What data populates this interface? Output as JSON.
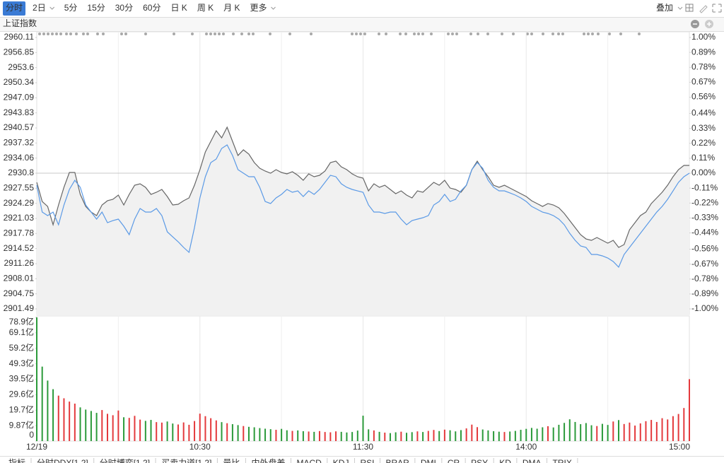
{
  "toolbar": {
    "tabs": [
      "分时",
      "2日",
      "5分",
      "15分",
      "30分",
      "60分",
      "日 K",
      "周 K",
      "月 K",
      "更多"
    ],
    "active": 0,
    "overlay": "叠加"
  },
  "chart_data": [
    {
      "type": "line",
      "title": "上证指数",
      "xlim": [
        0,
        120
      ],
      "xticks": [
        {
          "value": 0,
          "label": "12/19"
        },
        {
          "value": 30,
          "label": "10:30"
        },
        {
          "value": 60,
          "label": "11:30"
        },
        {
          "value": 90,
          "label": "14:00"
        },
        {
          "value": 120,
          "label": "15:00"
        }
      ],
      "ylim": [
        2901.49,
        2960.11
      ],
      "yticks": [
        2960.11,
        2956.85,
        2953.6,
        2950.34,
        2947.09,
        2943.83,
        2940.57,
        2937.32,
        2934.06,
        2930.8,
        2927.55,
        2924.29,
        2921.03,
        2917.78,
        2914.52,
        2911.26,
        2908.01,
        2904.75,
        2901.49
      ],
      "y2lim": [
        -1,
        1
      ],
      "y2ticks": [
        {
          "value": 1,
          "label": "1.00%"
        },
        {
          "value": 0.89,
          "label": "0.89%"
        },
        {
          "value": 0.78,
          "label": "0.78%"
        },
        {
          "value": 0.67,
          "label": "0.67%"
        },
        {
          "value": 0.56,
          "label": "0.56%"
        },
        {
          "value": 0.44,
          "label": "0.44%"
        },
        {
          "value": 0.33,
          "label": "0.33%"
        },
        {
          "value": 0.22,
          "label": "0.22%"
        },
        {
          "value": 0.11,
          "label": "0.11%"
        },
        {
          "value": 0,
          "label": "0.00%"
        },
        {
          "value": -0.11,
          "label": "-0.11%"
        },
        {
          "value": -0.22,
          "label": "-0.22%"
        },
        {
          "value": -0.33,
          "label": "-0.33%"
        },
        {
          "value": -0.44,
          "label": "-0.44%"
        },
        {
          "value": -0.56,
          "label": "-0.56%"
        },
        {
          "value": -0.67,
          "label": "-0.67%"
        },
        {
          "value": -0.78,
          "label": "-0.78%"
        },
        {
          "value": -0.89,
          "label": "-0.89%"
        },
        {
          "value": -1,
          "label": "-1.00%"
        }
      ],
      "up_color": "#e4393c",
      "down_color": "#2b9a3a",
      "flat_color": "#333333",
      "fill": "#f1f1f1",
      "series": [
        {
          "color": "#666666",
          "values": [
            2928.82,
            2924.69,
            2923.62,
            2919.66,
            2923.93,
            2927.75,
            2930.95,
            2930.95,
            2926.22,
            2923.62,
            2922.4,
            2921.64,
            2923.93,
            2924.85,
            2925.15,
            2926.07,
            2923.93,
            2926.22,
            2928.2,
            2928.51,
            2927.75,
            2926.22,
            2926.68,
            2927.29,
            2925.76,
            2923.93,
            2924.08,
            2924.85,
            2925.46,
            2928.2,
            2931.56,
            2935.38,
            2937.67,
            2939.96,
            2938.43,
            2940.72,
            2937.67,
            2934.62,
            2935.84,
            2934.92,
            2933.09,
            2931.87,
            2931.26,
            2930.8,
            2931.56,
            2930.95,
            2930.65,
            2931.11,
            2930.34,
            2929.27,
            2930.65,
            2930.04,
            2930.34,
            2931.26,
            2933.09,
            2933.4,
            2932.17,
            2931.56,
            2930.65,
            2930.04,
            2929.73,
            2926.98,
            2928.51,
            2927.75,
            2928.2,
            2927.29,
            2926.37,
            2926.98,
            2926.07,
            2925.46,
            2926.98,
            2926.68,
            2927.75,
            2928.82,
            2928.2,
            2929.27,
            2927.59,
            2927.29,
            2926.68,
            2928.2,
            2931.56,
            2933.4,
            2931.56,
            2930.04,
            2928.2,
            2927.75,
            2928.2,
            2927.59,
            2926.98,
            2926.37,
            2925.76,
            2924.85,
            2924.24,
            2923.62,
            2924.24,
            2923.93,
            2923.32,
            2922.1,
            2920.57,
            2919.05,
            2917.52,
            2916.6,
            2916.3,
            2916.91,
            2916.3,
            2915.69,
            2916.3,
            2914.77,
            2915.38,
            2918.59,
            2920.11,
            2921.64,
            2922.4,
            2924.24,
            2925.46,
            2926.68,
            2928.2,
            2930.04,
            2931.56,
            2932.48,
            2932.48
          ]
        },
        {
          "color": "#5b9ae6",
          "values": [
            2928.2,
            2922.4,
            2921.64,
            2922.4,
            2919.66,
            2923.93,
            2927.29,
            2929.27,
            2927.75,
            2923.93,
            2922.4,
            2920.88,
            2922.4,
            2920.11,
            2920.57,
            2920.88,
            2919.35,
            2917.52,
            2920.88,
            2923.17,
            2922.4,
            2922.4,
            2923.17,
            2921.64,
            2918.13,
            2917.06,
            2915.99,
            2914.77,
            2913.7,
            2919.05,
            2925.46,
            2930.04,
            2933.09,
            2933.85,
            2936.14,
            2936.91,
            2934.62,
            2931.56,
            2930.8,
            2930.04,
            2930.04,
            2927.75,
            2924.69,
            2924.24,
            2925.46,
            2926.22,
            2927.29,
            2926.68,
            2926.98,
            2925.76,
            2926.98,
            2926.22,
            2927.29,
            2928.82,
            2930.34,
            2930.04,
            2928.51,
            2927.75,
            2927.29,
            2926.98,
            2926.68,
            2923.93,
            2922.4,
            2922.4,
            2922.1,
            2922.4,
            2922.4,
            2920.88,
            2919.66,
            2920.57,
            2920.88,
            2921.18,
            2921.64,
            2923.93,
            2924.69,
            2926.22,
            2924.69,
            2925.15,
            2926.98,
            2928.2,
            2931.56,
            2933.09,
            2931.87,
            2929.27,
            2927.75,
            2926.98,
            2926.98,
            2926.53,
            2926.07,
            2925.46,
            2924.69,
            2923.62,
            2923.01,
            2922.4,
            2922.1,
            2921.64,
            2920.88,
            2919.66,
            2917.82,
            2916.3,
            2915.08,
            2914.77,
            2913.24,
            2913.24,
            2912.94,
            2912.48,
            2911.72,
            2910.5,
            2913.24,
            2914.77,
            2916.3,
            2917.82,
            2919.35,
            2920.88,
            2922.4,
            2923.62,
            2925.15,
            2926.98,
            2928.82,
            2930.04,
            2930.8
          ]
        }
      ]
    },
    {
      "type": "bar",
      "ylim": [
        0,
        78.9
      ],
      "yticks": [
        {
          "value": 78.9,
          "label": "78.9亿"
        },
        {
          "value": 69.1,
          "label": "69.1亿"
        },
        {
          "value": 59.2,
          "label": "59.2亿"
        },
        {
          "value": 49.3,
          "label": "49.3亿"
        },
        {
          "value": 39.5,
          "label": "39.5亿"
        },
        {
          "value": 29.6,
          "label": "29.6亿"
        },
        {
          "value": 19.7,
          "label": "19.7亿"
        },
        {
          "value": 9.87,
          "label": "9.87亿"
        },
        0
      ],
      "values": [
        78.9,
        47.5,
        38.6,
        33.1,
        29.0,
        27.3,
        25.2,
        23.9,
        21.5,
        20.1,
        19.2,
        18.0,
        19.8,
        17.4,
        16.5,
        19.5,
        15.2,
        14.8,
        16.1,
        13.7,
        12.9,
        13.5,
        12.1,
        11.8,
        12.5,
        11.2,
        10.6,
        11.9,
        10.4,
        12.8,
        17.5,
        15.9,
        14.6,
        13.2,
        12.1,
        11.4,
        10.8,
        10.2,
        9.6,
        9.1,
        8.8,
        8.3,
        7.9,
        7.6,
        7.2,
        7.8,
        6.9,
        6.5,
        6.8,
        6.3,
        6.1,
        5.9,
        6.4,
        5.8,
        5.6,
        6.2,
        5.9,
        5.5,
        5.8,
        6.7,
        16.2,
        7.5,
        6.8,
        5.9,
        5.4,
        5.1,
        5.6,
        6.0,
        5.3,
        5.7,
        6.2,
        5.8,
        6.5,
        7.1,
        6.4,
        7.3,
        6.9,
        6.2,
        7.0,
        8.1,
        10.5,
        8.9,
        7.4,
        6.8,
        6.3,
        6.0,
        5.8,
        6.1,
        6.5,
        7.2,
        7.8,
        8.4,
        7.9,
        8.8,
        9.5,
        8.7,
        10.4,
        11.6,
        13.9,
        12.2,
        10.8,
        11.5,
        10.1,
        9.6,
        11.0,
        10.3,
        12.5,
        13.4,
        10.9,
        11.8,
        9.9,
        11.3,
        12.7,
        13.5,
        12.2,
        14.6,
        13.8,
        15.9,
        17.3,
        21.1,
        39.5
      ]
    }
  ],
  "indicator_tabs": [
    "指标",
    "分时DDX[1,2]",
    "分时博弈[1,2]",
    "买卖力道[1,2]",
    "量比",
    "内外盘差",
    "MACD",
    "KDJ",
    "RSI",
    "BRAR",
    "DMI",
    "CR",
    "PSY",
    "KD",
    "DMA",
    "TRIX"
  ]
}
